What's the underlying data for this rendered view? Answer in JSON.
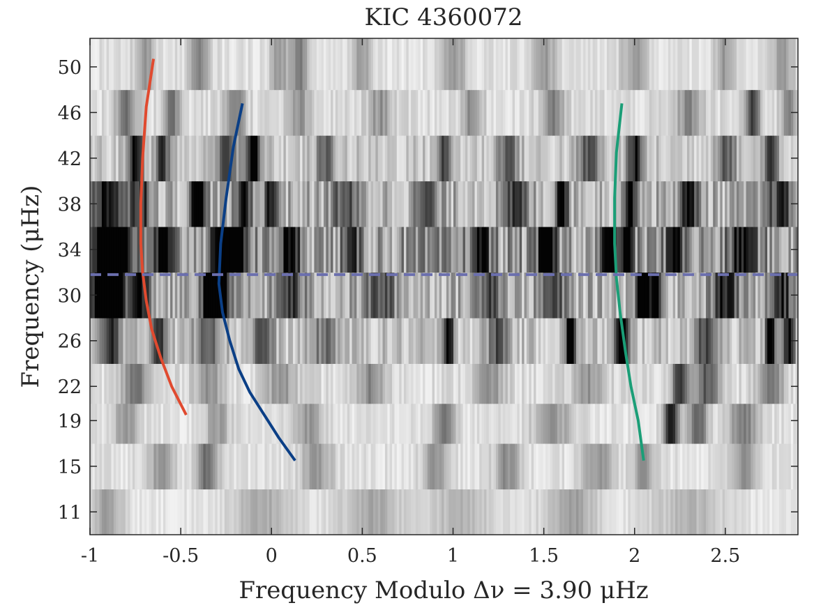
{
  "chart_data": {
    "type": "heatmap",
    "title": "KIC 4360072",
    "xlabel": "Frequency Modulo Δν = 3.90 μHz",
    "ylabel": "Frequency (μHz)",
    "xlim": [
      -1.0,
      2.9
    ],
    "ylim": [
      9.0,
      52.5
    ],
    "delta_nu": 3.9,
    "x_ticks": [
      "-1",
      "-0.5",
      "0",
      "0.5",
      "1",
      "1.5",
      "2",
      "2.5"
    ],
    "x_tick_values": [
      -1,
      -0.5,
      0,
      0.5,
      1,
      1.5,
      2,
      2.5
    ],
    "y_ticks": [
      "11",
      "15",
      "19",
      "22",
      "26",
      "30",
      "34",
      "38",
      "42",
      "46",
      "50"
    ],
    "y_tick_values": [
      11,
      15,
      19,
      22,
      26,
      30,
      34,
      38,
      42,
      46,
      50
    ],
    "heatmap": {
      "colormap": "gray-reversed",
      "row_order": "bottom-to-top",
      "row_frequencies": [
        11,
        15,
        19,
        22,
        26,
        30,
        34,
        38,
        42,
        46,
        50
      ],
      "rows": [
        {
          "base": 0.08,
          "spots": [
            [
              -0.9,
              0.06,
              0.3
            ],
            [
              -0.05,
              0.12,
              0.25
            ],
            [
              0.55,
              0.12,
              0.25
            ],
            [
              1.05,
              0.15,
              0.2
            ],
            [
              1.65,
              0.1,
              0.3
            ],
            [
              2.3,
              0.15,
              0.2
            ]
          ]
        },
        {
          "base": 0.1,
          "spots": [
            [
              -0.6,
              0.05,
              0.35
            ],
            [
              -0.35,
              0.04,
              0.5
            ],
            [
              0.25,
              0.06,
              0.3
            ],
            [
              0.9,
              0.05,
              0.3
            ],
            [
              1.3,
              0.05,
              0.35
            ],
            [
              1.8,
              0.06,
              0.3
            ],
            [
              2.05,
              0.04,
              0.35
            ],
            [
              2.6,
              0.05,
              0.3
            ]
          ]
        },
        {
          "base": 0.1,
          "spots": [
            [
              -0.8,
              0.05,
              0.3
            ],
            [
              -0.3,
              0.05,
              0.3
            ],
            [
              0.2,
              0.06,
              0.3
            ],
            [
              0.95,
              0.04,
              0.45
            ],
            [
              1.55,
              0.08,
              0.3
            ],
            [
              2.2,
              0.03,
              0.8
            ],
            [
              2.35,
              0.04,
              0.5
            ],
            [
              2.6,
              0.06,
              0.4
            ]
          ]
        },
        {
          "base": 0.12,
          "spots": [
            [
              -0.75,
              0.05,
              0.45
            ],
            [
              -0.35,
              0.06,
              0.3
            ],
            [
              0.05,
              0.06,
              0.3
            ],
            [
              0.55,
              0.05,
              0.35
            ],
            [
              1.2,
              0.06,
              0.3
            ],
            [
              1.75,
              0.06,
              0.3
            ],
            [
              2.25,
              0.03,
              0.7
            ],
            [
              2.4,
              0.05,
              0.55
            ],
            [
              2.75,
              0.05,
              0.4
            ]
          ]
        },
        {
          "base": 0.22,
          "spots": [
            [
              -0.88,
              0.04,
              0.6
            ],
            [
              -0.62,
              0.03,
              0.7
            ],
            [
              -0.35,
              0.05,
              0.5
            ],
            [
              -0.05,
              0.04,
              0.5
            ],
            [
              0.3,
              0.05,
              0.35
            ],
            [
              0.98,
              0.02,
              0.8
            ],
            [
              1.25,
              0.04,
              0.5
            ],
            [
              1.65,
              0.02,
              1.0
            ],
            [
              1.93,
              0.025,
              1.0
            ],
            [
              2.4,
              0.05,
              0.5
            ],
            [
              2.75,
              0.02,
              0.9
            ],
            [
              2.85,
              0.02,
              0.8
            ]
          ]
        },
        {
          "base": 0.3,
          "spots": [
            [
              -0.9,
              0.07,
              1.0
            ],
            [
              -0.72,
              0.04,
              0.6
            ],
            [
              -0.35,
              0.03,
              0.7
            ],
            [
              -0.28,
              0.04,
              1.0
            ],
            [
              0.1,
              0.05,
              0.5
            ],
            [
              0.6,
              0.06,
              0.4
            ],
            [
              1.2,
              0.05,
              0.5
            ],
            [
              1.55,
              0.05,
              0.4
            ],
            [
              2.05,
              0.03,
              1.0
            ],
            [
              2.12,
              0.02,
              0.9
            ],
            [
              2.5,
              0.05,
              0.6
            ],
            [
              2.8,
              0.05,
              0.6
            ]
          ]
        },
        {
          "base": 0.38,
          "spots": [
            [
              -0.92,
              0.05,
              1.0
            ],
            [
              -0.82,
              0.04,
              0.8
            ],
            [
              -0.6,
              0.04,
              0.6
            ],
            [
              -0.3,
              0.03,
              0.8
            ],
            [
              -0.2,
              0.04,
              1.0
            ],
            [
              0.1,
              0.05,
              0.5
            ],
            [
              0.45,
              0.04,
              0.3
            ],
            [
              1.15,
              0.04,
              0.6
            ],
            [
              1.52,
              0.03,
              1.0
            ],
            [
              1.87,
              0.03,
              1.0
            ],
            [
              1.96,
              0.02,
              0.9
            ],
            [
              2.22,
              0.03,
              0.8
            ],
            [
              2.6,
              0.05,
              0.6
            ]
          ]
        },
        {
          "base": 0.3,
          "spots": [
            [
              -0.9,
              0.06,
              0.7
            ],
            [
              -0.72,
              0.04,
              0.6
            ],
            [
              -0.4,
              0.03,
              1.0
            ],
            [
              -0.15,
              0.03,
              0.7
            ],
            [
              0.0,
              0.03,
              0.6
            ],
            [
              0.4,
              0.05,
              0.4
            ],
            [
              0.85,
              0.04,
              0.4
            ],
            [
              1.35,
              0.04,
              0.5
            ],
            [
              1.6,
              0.02,
              1.0
            ],
            [
              1.98,
              0.03,
              0.7
            ],
            [
              2.3,
              0.04,
              0.6
            ],
            [
              2.8,
              0.05,
              0.5
            ]
          ]
        },
        {
          "base": 0.2,
          "spots": [
            [
              -0.75,
              0.03,
              0.8
            ],
            [
              -0.6,
              0.03,
              0.6
            ],
            [
              -0.25,
              0.04,
              0.6
            ],
            [
              -0.1,
              0.03,
              0.8
            ],
            [
              0.3,
              0.04,
              0.4
            ],
            [
              0.95,
              0.03,
              0.5
            ],
            [
              1.3,
              0.04,
              0.5
            ],
            [
              1.75,
              0.04,
              0.5
            ],
            [
              2.0,
              0.03,
              0.7
            ],
            [
              2.5,
              0.04,
              0.5
            ],
            [
              2.75,
              0.03,
              0.6
            ]
          ]
        },
        {
          "base": 0.12,
          "spots": [
            [
              -0.8,
              0.04,
              0.4
            ],
            [
              -0.55,
              0.03,
              0.5
            ],
            [
              -0.2,
              0.04,
              0.4
            ],
            [
              0.15,
              0.04,
              0.3
            ],
            [
              0.6,
              0.05,
              0.3
            ],
            [
              1.1,
              0.04,
              0.3
            ],
            [
              1.55,
              0.04,
              0.4
            ],
            [
              2.3,
              0.05,
              0.35
            ],
            [
              2.65,
              0.03,
              0.6
            ],
            [
              2.85,
              0.03,
              0.4
            ]
          ]
        },
        {
          "base": 0.1,
          "spots": [
            [
              -0.7,
              0.04,
              0.3
            ],
            [
              -0.4,
              0.04,
              0.35
            ],
            [
              0.05,
              0.04,
              0.3
            ],
            [
              0.16,
              0.03,
              0.4
            ],
            [
              0.5,
              0.04,
              0.3
            ],
            [
              1.0,
              0.05,
              0.3
            ],
            [
              1.5,
              0.05,
              0.3
            ],
            [
              2.0,
              0.05,
              0.3
            ],
            [
              2.5,
              0.04,
              0.3
            ],
            [
              2.82,
              0.04,
              0.3
            ]
          ]
        }
      ]
    },
    "series": [
      {
        "color": "#e04a2f",
        "x": [
          -0.47,
          -0.55,
          -0.61,
          -0.66,
          -0.69,
          -0.71,
          -0.72,
          -0.72,
          -0.71,
          -0.69,
          -0.65
        ],
        "y": [
          19.5,
          22.0,
          24.5,
          27.0,
          29.5,
          32.0,
          34.5,
          38.0,
          42.0,
          46.5,
          50.7
        ]
      },
      {
        "color": "#0b3f86",
        "x": [
          0.13,
          0.04,
          -0.04,
          -0.12,
          -0.18,
          -0.23,
          -0.27,
          -0.29,
          -0.28,
          -0.25,
          -0.21,
          -0.16
        ],
        "y": [
          15.5,
          17.5,
          19.5,
          21.5,
          23.5,
          26.0,
          28.5,
          31.0,
          34.5,
          38.5,
          43.0,
          46.8
        ]
      },
      {
        "color": "#1b9e77",
        "x": [
          2.05,
          2.02,
          1.98,
          1.95,
          1.92,
          1.9,
          1.89,
          1.89,
          1.9,
          1.93
        ],
        "y": [
          15.5,
          19.0,
          22.0,
          25.0,
          28.5,
          31.5,
          34.5,
          38.5,
          42.5,
          46.8
        ]
      }
    ],
    "hline": {
      "y": 31.8,
      "color": "#6b6fae",
      "style": "dashed"
    },
    "grid": false,
    "legend": "none"
  }
}
